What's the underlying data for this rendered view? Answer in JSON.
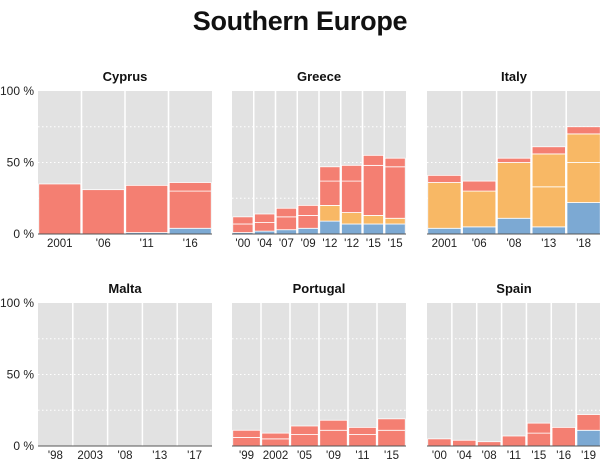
{
  "title": "Southern Europe",
  "y_tick_labels": [
    "100 %",
    "50 %",
    "0 %"
  ],
  "colors": {
    "panel_background": "#e2e2e2",
    "gridline": "#ffffff",
    "bar_red": "#f47f72",
    "bar_orange": "#f8b865",
    "bar_blue": "#7ca9d3",
    "text": "#222222"
  },
  "chart_data": [
    {
      "type": "bar",
      "stacked": true,
      "title": "Cyprus",
      "ylim": [
        0,
        100
      ],
      "categories": [
        "2001",
        "'06",
        "'11",
        "'16"
      ],
      "bars": [
        {
          "label": "2001",
          "segments": [
            {
              "color": "red",
              "value": 35
            }
          ]
        },
        {
          "label": "'06",
          "segments": [
            {
              "color": "red",
              "value": 31
            }
          ]
        },
        {
          "label": "'11",
          "segments": [
            {
              "color": "blue",
              "value": 1
            },
            {
              "color": "red",
              "value": 33
            }
          ]
        },
        {
          "label": "'16",
          "segments": [
            {
              "color": "blue",
              "value": 4
            },
            {
              "color": "red",
              "value": 26
            },
            {
              "color": "red",
              "value": 6
            }
          ]
        }
      ]
    },
    {
      "type": "bar",
      "stacked": true,
      "title": "Greece",
      "ylim": [
        0,
        100
      ],
      "categories": [
        "'00",
        "'04",
        "'07",
        "'09",
        "'12",
        "'12",
        "'15",
        "'15"
      ],
      "bars": [
        {
          "label": "'00",
          "segments": [
            {
              "color": "blue",
              "value": 1
            },
            {
              "color": "red",
              "value": 6
            },
            {
              "color": "red",
              "value": 5
            }
          ]
        },
        {
          "label": "'04",
          "segments": [
            {
              "color": "blue",
              "value": 2
            },
            {
              "color": "red",
              "value": 6
            },
            {
              "color": "red",
              "value": 6
            }
          ]
        },
        {
          "label": "'07",
          "segments": [
            {
              "color": "blue",
              "value": 3
            },
            {
              "color": "red",
              "value": 9
            },
            {
              "color": "red",
              "value": 6
            }
          ]
        },
        {
          "label": "'09",
          "segments": [
            {
              "color": "blue",
              "value": 4
            },
            {
              "color": "red",
              "value": 9
            },
            {
              "color": "red",
              "value": 7
            }
          ]
        },
        {
          "label": "'12",
          "segments": [
            {
              "color": "blue",
              "value": 9
            },
            {
              "color": "orange",
              "value": 11
            },
            {
              "color": "red",
              "value": 17
            },
            {
              "color": "red",
              "value": 10
            }
          ]
        },
        {
          "label": "'12",
          "segments": [
            {
              "color": "blue",
              "value": 7
            },
            {
              "color": "orange",
              "value": 8
            },
            {
              "color": "red",
              "value": 22
            },
            {
              "color": "red",
              "value": 11
            }
          ]
        },
        {
          "label": "'15",
          "segments": [
            {
              "color": "blue",
              "value": 7
            },
            {
              "color": "orange",
              "value": 6
            },
            {
              "color": "red",
              "value": 35
            },
            {
              "color": "red",
              "value": 7
            }
          ]
        },
        {
          "label": "'15",
          "segments": [
            {
              "color": "blue",
              "value": 7
            },
            {
              "color": "orange",
              "value": 4
            },
            {
              "color": "red",
              "value": 36
            },
            {
              "color": "red",
              "value": 6
            }
          ]
        }
      ]
    },
    {
      "type": "bar",
      "stacked": true,
      "title": "Italy",
      "ylim": [
        0,
        100
      ],
      "categories": [
        "2001",
        "'06",
        "'08",
        "'13",
        "'18"
      ],
      "bars": [
        {
          "label": "2001",
          "segments": [
            {
              "color": "blue",
              "value": 4
            },
            {
              "color": "orange",
              "value": 32
            },
            {
              "color": "red",
              "value": 5
            }
          ]
        },
        {
          "label": "'06",
          "segments": [
            {
              "color": "blue",
              "value": 5
            },
            {
              "color": "orange",
              "value": 25
            },
            {
              "color": "red",
              "value": 7
            }
          ]
        },
        {
          "label": "'08",
          "segments": [
            {
              "color": "blue",
              "value": 11
            },
            {
              "color": "orange",
              "value": 39
            },
            {
              "color": "red",
              "value": 3
            }
          ]
        },
        {
          "label": "'13",
          "segments": [
            {
              "color": "blue",
              "value": 5
            },
            {
              "color": "orange",
              "value": 28
            },
            {
              "color": "orange",
              "value": 23
            },
            {
              "color": "red",
              "value": 5
            }
          ]
        },
        {
          "label": "'18",
          "segments": [
            {
              "color": "blue",
              "value": 22
            },
            {
              "color": "orange",
              "value": 28
            },
            {
              "color": "orange",
              "value": 20
            },
            {
              "color": "red",
              "value": 5
            }
          ]
        }
      ]
    },
    {
      "type": "bar",
      "stacked": true,
      "title": "Malta",
      "ylim": [
        0,
        100
      ],
      "categories": [
        "'98",
        "2003",
        "'08",
        "'13",
        "'17"
      ],
      "bars": [
        {
          "label": "'98",
          "segments": []
        },
        {
          "label": "2003",
          "segments": []
        },
        {
          "label": "'08",
          "segments": []
        },
        {
          "label": "'13",
          "segments": []
        },
        {
          "label": "'17",
          "segments": []
        }
      ]
    },
    {
      "type": "bar",
      "stacked": true,
      "title": "Portugal",
      "ylim": [
        0,
        100
      ],
      "categories": [
        "'99",
        "2002",
        "'05",
        "'09",
        "'11",
        "'15"
      ],
      "bars": [
        {
          "label": "'99",
          "segments": [
            {
              "color": "red",
              "value": 6
            },
            {
              "color": "red",
              "value": 5
            }
          ]
        },
        {
          "label": "2002",
          "segments": [
            {
              "color": "red",
              "value": 5
            },
            {
              "color": "red",
              "value": 4
            }
          ]
        },
        {
          "label": "'05",
          "segments": [
            {
              "color": "red",
              "value": 8
            },
            {
              "color": "red",
              "value": 6
            }
          ]
        },
        {
          "label": "'09",
          "segments": [
            {
              "color": "red",
              "value": 11
            },
            {
              "color": "red",
              "value": 7
            }
          ]
        },
        {
          "label": "'11",
          "segments": [
            {
              "color": "red",
              "value": 8
            },
            {
              "color": "red",
              "value": 5
            }
          ]
        },
        {
          "label": "'15",
          "segments": [
            {
              "color": "red",
              "value": 11
            },
            {
              "color": "red",
              "value": 8
            }
          ]
        }
      ]
    },
    {
      "type": "bar",
      "stacked": true,
      "title": "Spain",
      "ylim": [
        0,
        100
      ],
      "categories": [
        "'00",
        "'04",
        "'08",
        "'11",
        "'15",
        "'16",
        "'19"
      ],
      "bars": [
        {
          "label": "'00",
          "segments": [
            {
              "color": "red",
              "value": 5
            }
          ]
        },
        {
          "label": "'04",
          "segments": [
            {
              "color": "red",
              "value": 4
            }
          ]
        },
        {
          "label": "'08",
          "segments": [
            {
              "color": "red",
              "value": 3
            }
          ]
        },
        {
          "label": "'11",
          "segments": [
            {
              "color": "red",
              "value": 7
            }
          ]
        },
        {
          "label": "'15",
          "segments": [
            {
              "color": "red",
              "value": 9
            },
            {
              "color": "red",
              "value": 7
            }
          ]
        },
        {
          "label": "'16",
          "segments": [
            {
              "color": "red",
              "value": 13
            }
          ]
        },
        {
          "label": "'19",
          "segments": [
            {
              "color": "blue",
              "value": 11
            },
            {
              "color": "red",
              "value": 11
            }
          ]
        }
      ]
    }
  ]
}
